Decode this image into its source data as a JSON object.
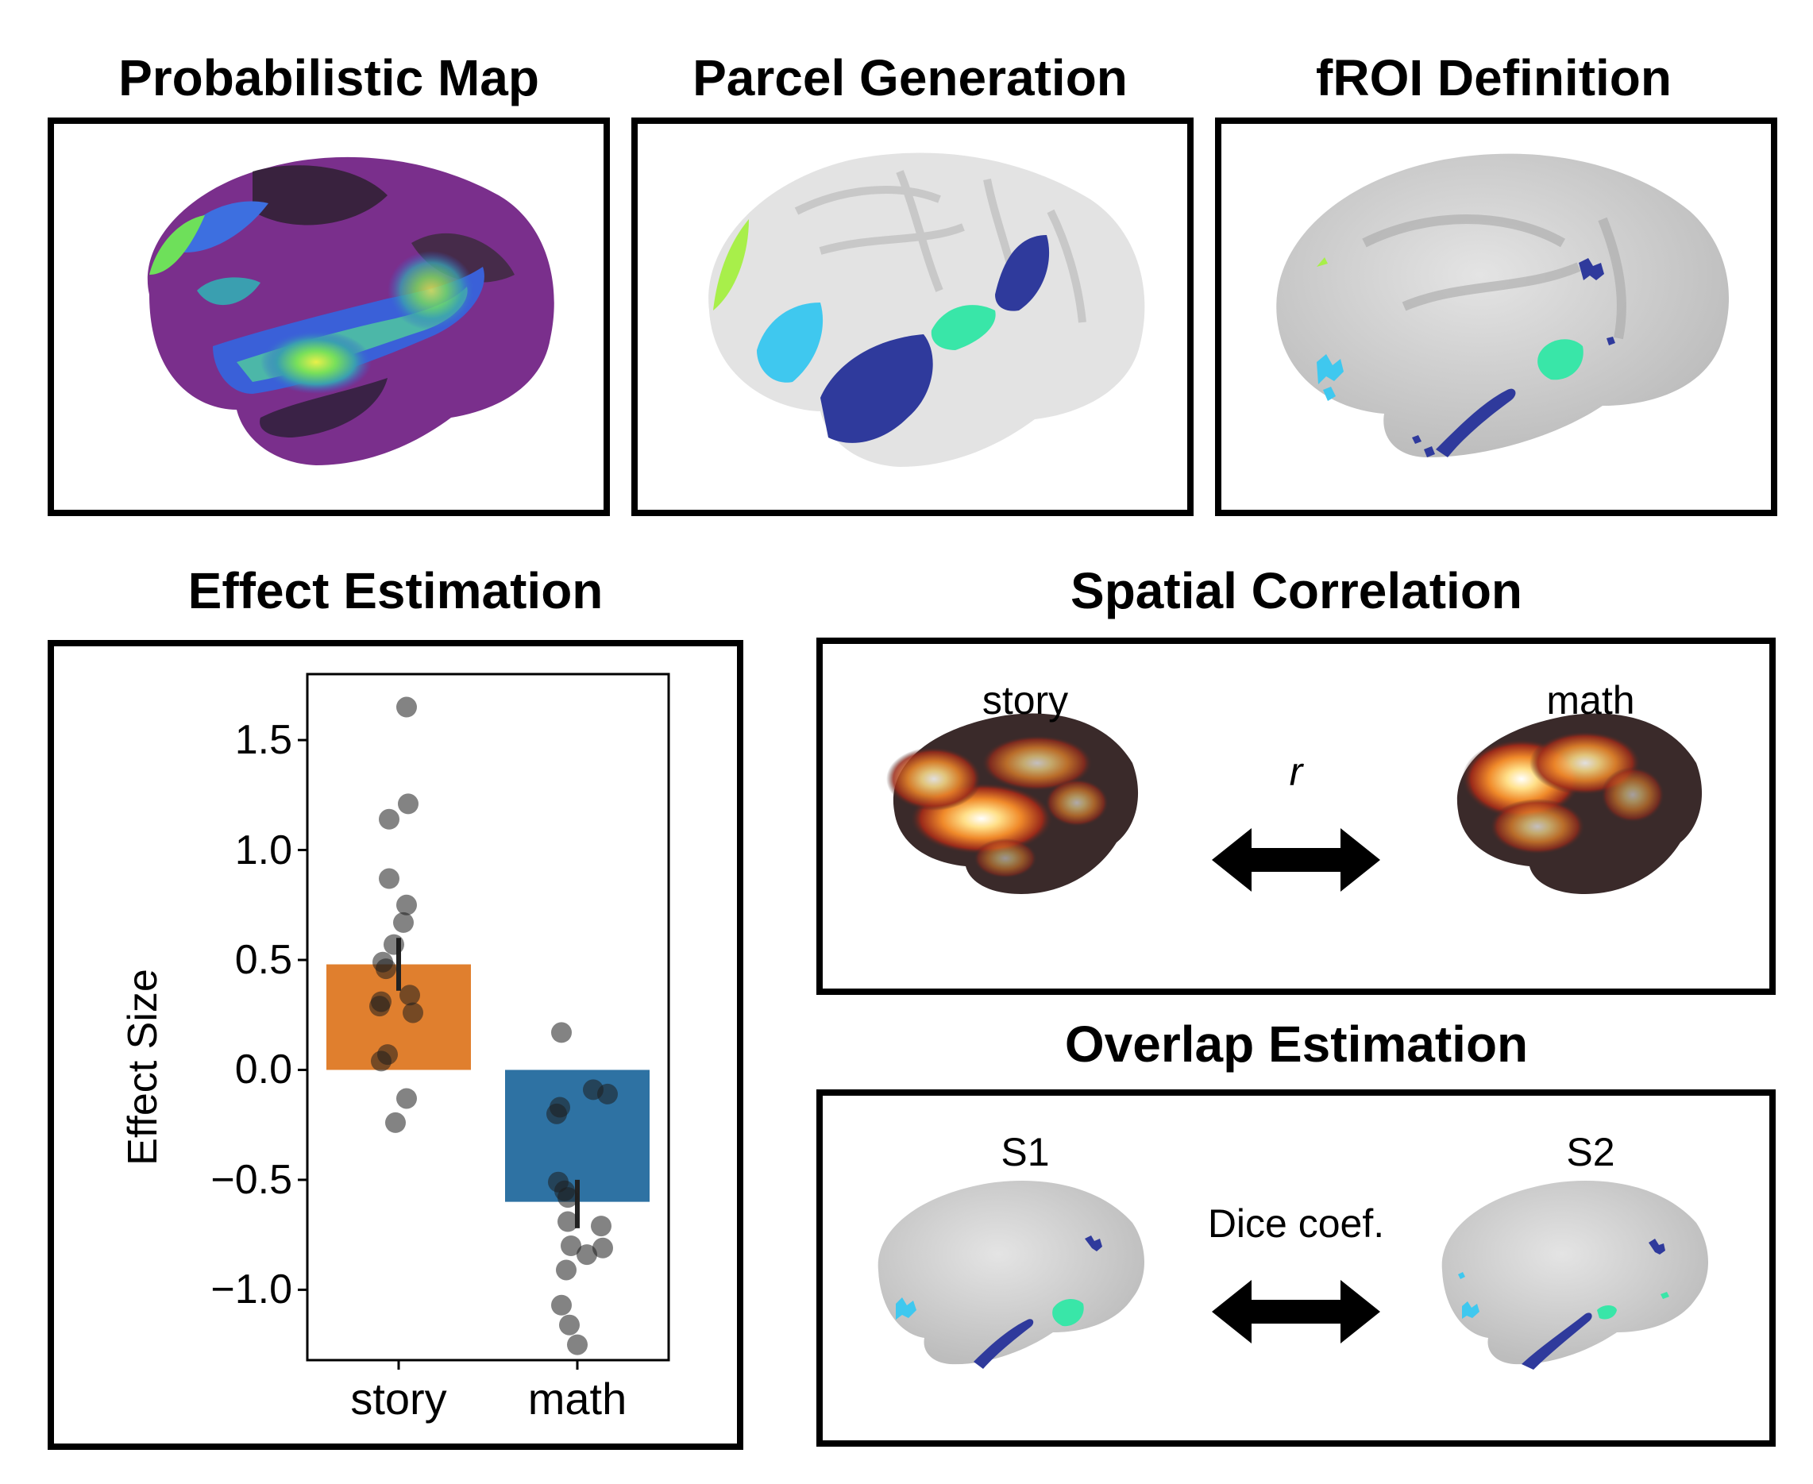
{
  "titles": {
    "prob_map": "Probabilistic Map",
    "parcel_gen": "Parcel Generation",
    "froi_def": "fROI Definition",
    "effect_est": "Effect Estimation",
    "spatial_corr": "Spatial Correlation",
    "overlap_est": "Overlap Estimation"
  },
  "spatial": {
    "left_label": "story",
    "right_label": "math",
    "arrow_label": "r"
  },
  "overlap": {
    "left_label": "S1",
    "right_label": "S2",
    "arrow_label": "Dice coef."
  },
  "colors": {
    "story_bar": "#e07f2e",
    "math_bar": "#2e72a3",
    "parcel_lightblue": "#3fc8ef",
    "parcel_navy": "#2f3a9c",
    "parcel_teal": "#39e6a8",
    "parcel_lime": "#a8ef4a",
    "viridis_dark": "#7a2f8c",
    "heat_dark": "#3a2a2a"
  },
  "chart_data": {
    "type": "bar",
    "categories": [
      "story",
      "math"
    ],
    "values": [
      0.48,
      -0.6
    ],
    "error": [
      [
        0.36,
        0.6
      ],
      [
        -0.5,
        -0.72
      ]
    ],
    "ylabel": "Effect Size",
    "ylim": [
      -1.32,
      1.8
    ],
    "yticks": [
      1.5,
      1.0,
      0.5,
      0.0,
      -0.5,
      -1.0
    ],
    "ytick_labels": [
      "1.5",
      "1.0",
      "0.5",
      "0.0",
      "−0.5",
      "−1.0"
    ],
    "points": [
      {
        "category": "story",
        "values": [
          1.65,
          1.21,
          1.14,
          0.87,
          0.75,
          0.67,
          0.57,
          0.49,
          0.46,
          0.34,
          0.31,
          0.29,
          0.26,
          0.07,
          0.04,
          -0.13,
          -0.24
        ]
      },
      {
        "category": "math",
        "values": [
          0.17,
          -0.09,
          -0.11,
          -0.17,
          -0.2,
          -0.51,
          -0.55,
          -0.58,
          -0.69,
          -0.71,
          -0.8,
          -0.81,
          -0.84,
          -0.91,
          -1.07,
          -1.16,
          -1.25
        ]
      }
    ],
    "grid": false
  }
}
